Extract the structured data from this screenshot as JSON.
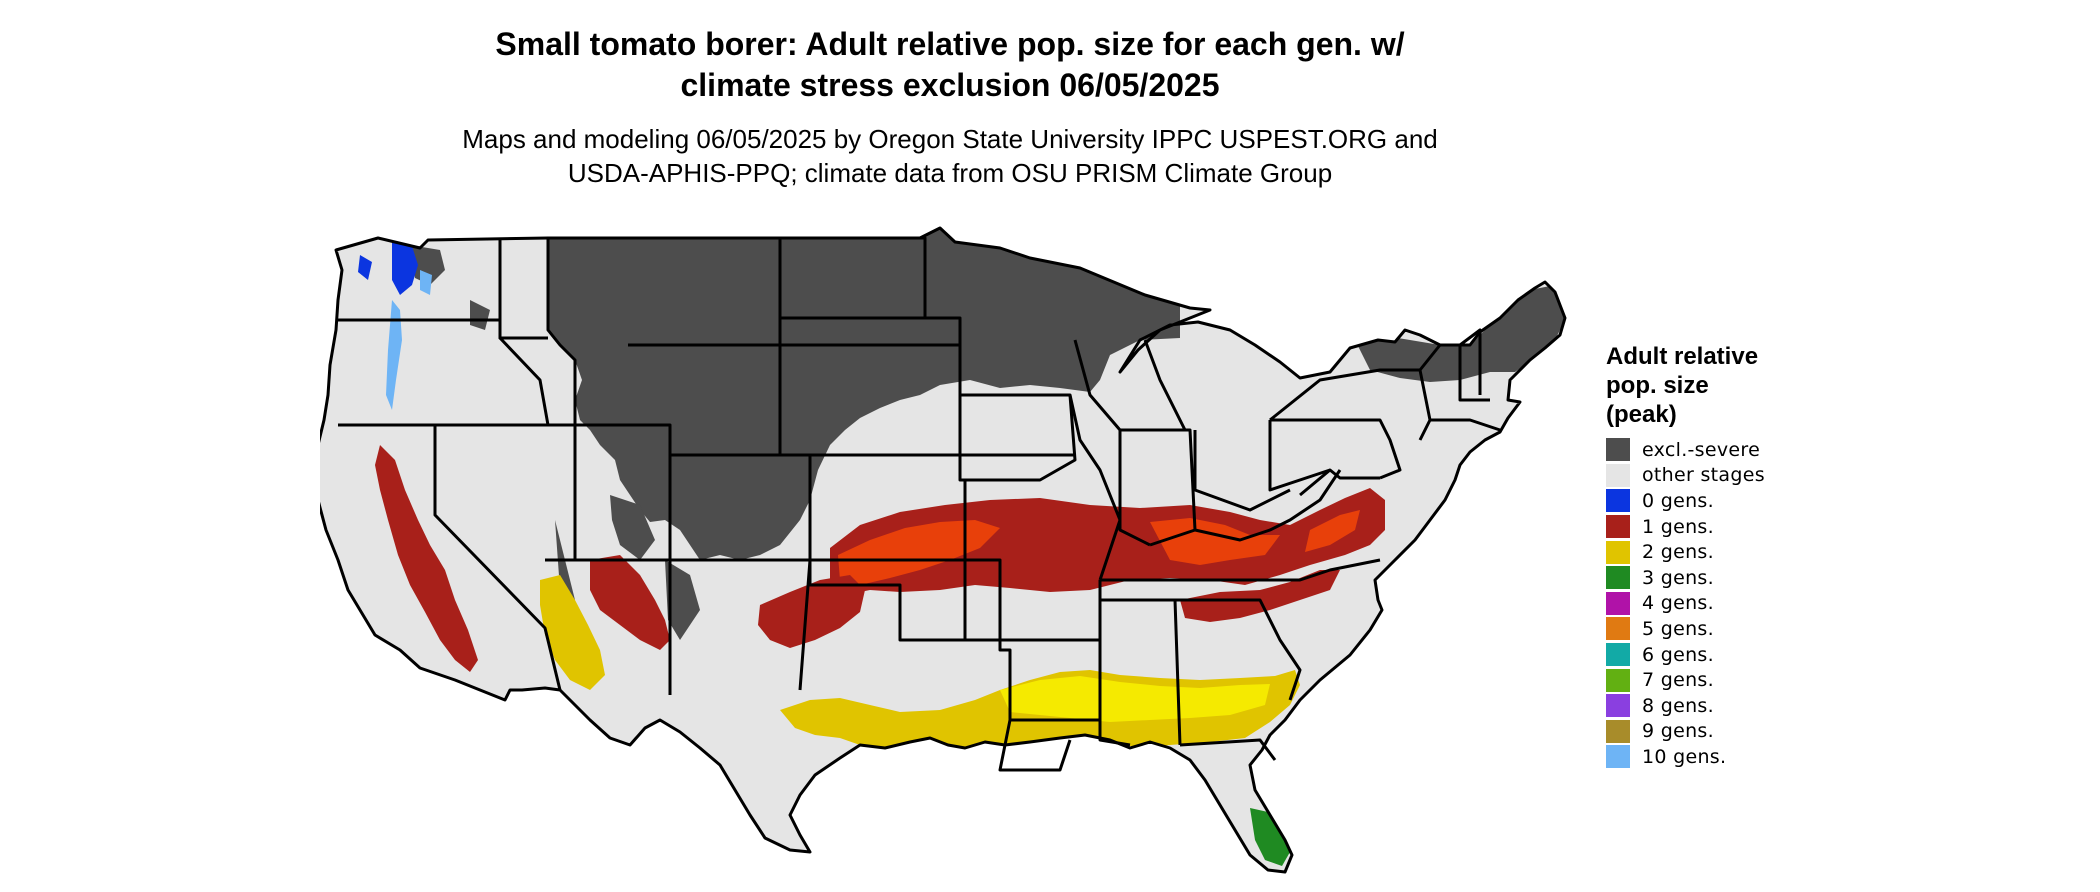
{
  "header": {
    "title_line1": "Small tomato borer: Adult relative pop. size for each gen. w/",
    "title_line2": "climate stress exclusion 06/05/2025",
    "subtitle_line1": "Maps and modeling 06/05/2025 by Oregon State University IPPC USPEST.ORG and",
    "subtitle_line2": "USDA-APHIS-PPQ; climate data from OSU PRISM Climate Group"
  },
  "legend": {
    "title_line1": "Adult relative",
    "title_line2": "pop. size",
    "title_line3": "(peak)",
    "items": [
      {
        "label": "excl.-severe",
        "color": "#4d4d4d"
      },
      {
        "label": "other stages",
        "color": "#e5e5e5"
      },
      {
        "label": "0 gens.",
        "color": "#0b35e0"
      },
      {
        "label": "1 gens.",
        "color": "#a8201a"
      },
      {
        "label": "2 gens.",
        "color": "#e0c400"
      },
      {
        "label": "3 gens.",
        "color": "#1f8a22"
      },
      {
        "label": "4 gens.",
        "color": "#b012a8"
      },
      {
        "label": "5 gens.",
        "color": "#e07a12"
      },
      {
        "label": "6 gens.",
        "color": "#12aaa6"
      },
      {
        "label": "7 gens.",
        "color": "#62b012"
      },
      {
        "label": "8 gens.",
        "color": "#8a3fe0"
      },
      {
        "label": "9 gens.",
        "color": "#a88c2a"
      },
      {
        "label": "10 gens.",
        "color": "#6eb4f5"
      }
    ]
  },
  "map": {
    "colors": {
      "background": "#e5e5e5",
      "excluded": "#4d4d4d",
      "one_gen": "#a8201a",
      "one_gen_light": "#e8400a",
      "two_gens": "#e0c400",
      "two_gens_light": "#f5ea00",
      "three_gens": "#1f8a22",
      "zero_gens": "#0b35e0",
      "ten_gens": "#6eb4f5",
      "borders": "#000000"
    }
  }
}
